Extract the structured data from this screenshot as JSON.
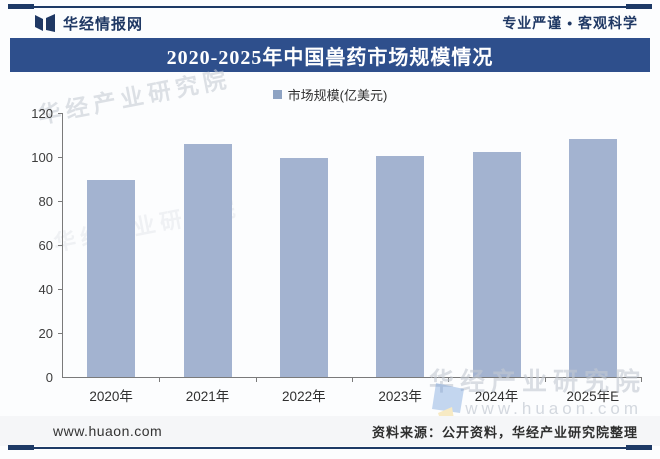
{
  "header": {
    "brand": "华经情报网",
    "slogan": "专业严谨 • 客观科学",
    "accent_color": "#1f3864"
  },
  "title_bar": {
    "text": "2020-2025年中国兽药市场规模情况",
    "background": "#2e4f8c",
    "text_color": "#ffffff"
  },
  "chart_data": {
    "type": "bar",
    "title": "2020-2025年中国兽药市场规模情况",
    "legend": [
      "市场规模(亿美元)"
    ],
    "legend_position": "top-center",
    "categories": [
      "2020年",
      "2021年",
      "2022年",
      "2023年",
      "2024年",
      "2025年E"
    ],
    "values": [
      89.5,
      106,
      99.5,
      100.5,
      102.5,
      108
    ],
    "ylim": [
      0,
      120
    ],
    "yticks": [
      0,
      20,
      40,
      60,
      80,
      100,
      120
    ],
    "grid": false,
    "bar_color": "#a3b3d0",
    "xlabel": "",
    "ylabel": ""
  },
  "watermarks": {
    "diagonal_top_left": "华经产业研究院",
    "diagonal_mid_left": "华经产业研究院",
    "bottom_right_line1": "华经产业研究院",
    "bottom_right_line2": "www.huaon.com"
  },
  "footer": {
    "website": "www.huaon.com",
    "source": "资料来源：公开资料，华经产业研究院整理"
  }
}
